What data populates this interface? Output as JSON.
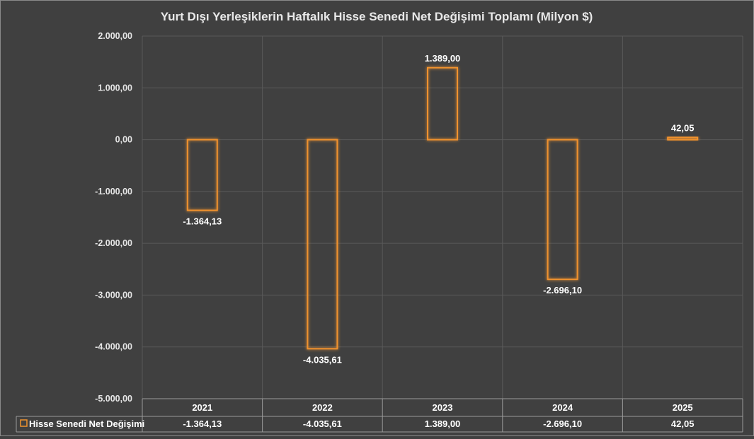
{
  "chart_data": {
    "type": "bar",
    "title": "Yurt Dışı Yerleşiklerin Haftalık Hisse Senedi Net Değişimi Toplamı (Milyon $)",
    "categories": [
      "2021",
      "2022",
      "2023",
      "2024",
      "2025"
    ],
    "series": [
      {
        "name": "Hisse Senedi Net Değişimi",
        "values": [
          -1364.13,
          -4035.61,
          1389.0,
          -2696.1,
          42.05
        ],
        "labels": [
          "-1.364,13",
          "-4.035,61",
          "1.389,00",
          "-2.696,10",
          "42,05"
        ]
      }
    ],
    "ylim": [
      -5000,
      2000
    ],
    "ytick_values": [
      2000,
      1000,
      0,
      -1000,
      -2000,
      -3000,
      -4000,
      -5000
    ],
    "ytick_labels": [
      "2.000,00",
      "1.000,00",
      "0,00",
      "-1.000,00",
      "-2.000,00",
      "-3.000,00",
      "-4.000,00",
      "-5.000,00"
    ],
    "grid": true,
    "data_table": true,
    "colors": {
      "background": "#404040",
      "bar_stroke": "#F0922E",
      "grid": "#595959"
    }
  }
}
